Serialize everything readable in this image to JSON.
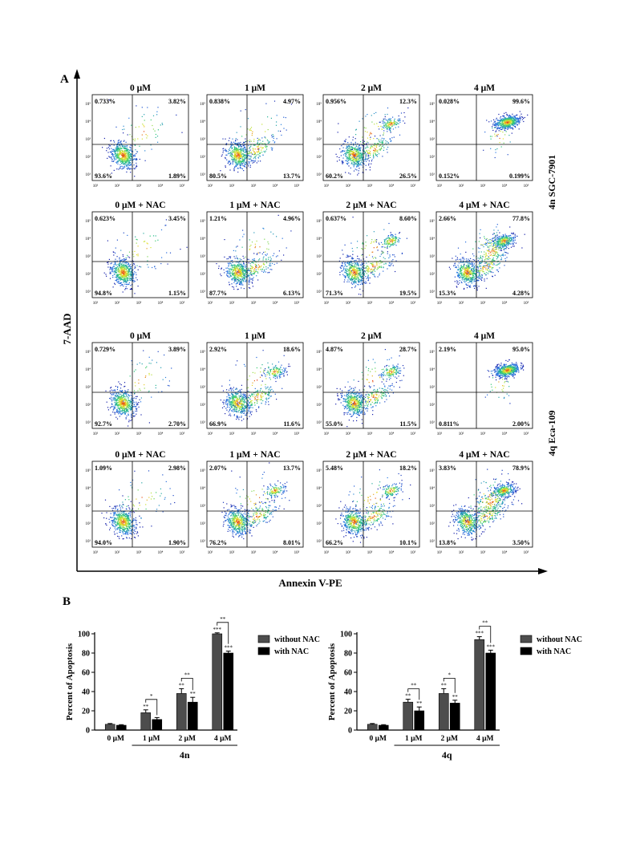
{
  "panel_a": {
    "label": "A",
    "y_axis_label": "7-AAD",
    "x_axis_label": "Annexin V-PE",
    "groups": [
      {
        "compound": "4n",
        "cell_line": "SGC-7901",
        "rows": [
          0,
          1
        ]
      },
      {
        "compound": "4q",
        "cell_line": "Eca-109",
        "rows": [
          2,
          3
        ]
      }
    ],
    "plots": [
      [
        {
          "title": "0 μM",
          "q": [
            "0.733%",
            "3.82%",
            "93.6%",
            "1.89%"
          ],
          "pop": "live"
        },
        {
          "title": "1 μM",
          "q": [
            "0.838%",
            "4.97%",
            "80.5%",
            "13.7%"
          ],
          "pop": "live_early"
        },
        {
          "title": "2 μM",
          "q": [
            "0.956%",
            "12.3%",
            "60.2%",
            "26.5%"
          ],
          "pop": "live_late"
        },
        {
          "title": "4 μM",
          "q": [
            "0.028%",
            "99.6%",
            "0.152%",
            "0.199%"
          ],
          "pop": "late"
        }
      ],
      [
        {
          "title": "0 μM + NAC",
          "q": [
            "0.623%",
            "3.45%",
            "94.8%",
            "1.15%"
          ],
          "pop": "live"
        },
        {
          "title": "1 μM + NAC",
          "q": [
            "1.21%",
            "4.96%",
            "87.7%",
            "6.13%"
          ],
          "pop": "live_early"
        },
        {
          "title": "2 μM + NAC",
          "q": [
            "0.637%",
            "8.60%",
            "71.3%",
            "19.5%"
          ],
          "pop": "live_late"
        },
        {
          "title": "4 μM + NAC",
          "q": [
            "2.66%",
            "77.8%",
            "15.3%",
            "4.28%"
          ],
          "pop": "mostly_late"
        }
      ],
      [
        {
          "title": "0 μM",
          "q": [
            "0.729%",
            "3.89%",
            "92.7%",
            "2.70%"
          ],
          "pop": "live"
        },
        {
          "title": "1 μM",
          "q": [
            "2.92%",
            "18.6%",
            "66.9%",
            "11.6%"
          ],
          "pop": "live_late"
        },
        {
          "title": "2 μM",
          "q": [
            "4.87%",
            "28.7%",
            "55.0%",
            "11.5%"
          ],
          "pop": "live_late"
        },
        {
          "title": "4 μM",
          "q": [
            "2.19%",
            "95.0%",
            "0.811%",
            "2.00%"
          ],
          "pop": "late"
        }
      ],
      [
        {
          "title": "0 μM + NAC",
          "q": [
            "1.09%",
            "2.98%",
            "94.0%",
            "1.90%"
          ],
          "pop": "live"
        },
        {
          "title": "1 μM + NAC",
          "q": [
            "2.07%",
            "13.7%",
            "76.2%",
            "8.01%"
          ],
          "pop": "live_late"
        },
        {
          "title": "2 μM + NAC",
          "q": [
            "5.48%",
            "18.2%",
            "66.2%",
            "10.1%"
          ],
          "pop": "live_late"
        },
        {
          "title": "4 μM + NAC",
          "q": [
            "3.83%",
            "78.9%",
            "13.8%",
            "3.50%"
          ],
          "pop": "mostly_late"
        }
      ]
    ],
    "log_ticks": [
      "10¹",
      "10²",
      "10³",
      "10⁴",
      "10⁵"
    ]
  },
  "panel_b": {
    "label": "B"
  },
  "chart_data": [
    {
      "type": "bar",
      "xlabel": "4n",
      "ylabel": "Percent of Apoptosis",
      "categories": [
        "0 μM",
        "1 μM",
        "2 μM",
        "4 μM"
      ],
      "ylim": [
        0,
        100
      ],
      "yticks": [
        0,
        20,
        40,
        60,
        80,
        100
      ],
      "legend_position": "right",
      "series": [
        {
          "name": "without NAC",
          "color": "#4d4d4d",
          "values": [
            6,
            18,
            38,
            100
          ],
          "errors": [
            0.8,
            3,
            5,
            1
          ],
          "stars": [
            "",
            "**",
            "**",
            "***"
          ]
        },
        {
          "name": "with NAC",
          "color": "#000000",
          "values": [
            5,
            11,
            29,
            80
          ],
          "errors": [
            0.6,
            2,
            5,
            2
          ],
          "stars": [
            "",
            "",
            "**",
            "***"
          ]
        }
      ],
      "comparisons": [
        "",
        "*",
        "**",
        "**"
      ]
    },
    {
      "type": "bar",
      "xlabel": "4q",
      "ylabel": "Percent of Apoptosis",
      "categories": [
        "0 μM",
        "1 μM",
        "2 μM",
        "4 μM"
      ],
      "ylim": [
        0,
        100
      ],
      "yticks": [
        0,
        20,
        40,
        60,
        80,
        100
      ],
      "legend_position": "right",
      "series": [
        {
          "name": "without NAC",
          "color": "#4d4d4d",
          "values": [
            6,
            29,
            38,
            94
          ],
          "errors": [
            0.8,
            3,
            5,
            3
          ],
          "stars": [
            "",
            "**",
            "**",
            "***"
          ]
        },
        {
          "name": "with NAC",
          "color": "#000000",
          "values": [
            5,
            20,
            28,
            80
          ],
          "errors": [
            0.6,
            4,
            3,
            3
          ],
          "stars": [
            "",
            "**",
            "**",
            "***"
          ]
        }
      ],
      "comparisons": [
        "",
        "**",
        "*",
        "**"
      ]
    }
  ]
}
